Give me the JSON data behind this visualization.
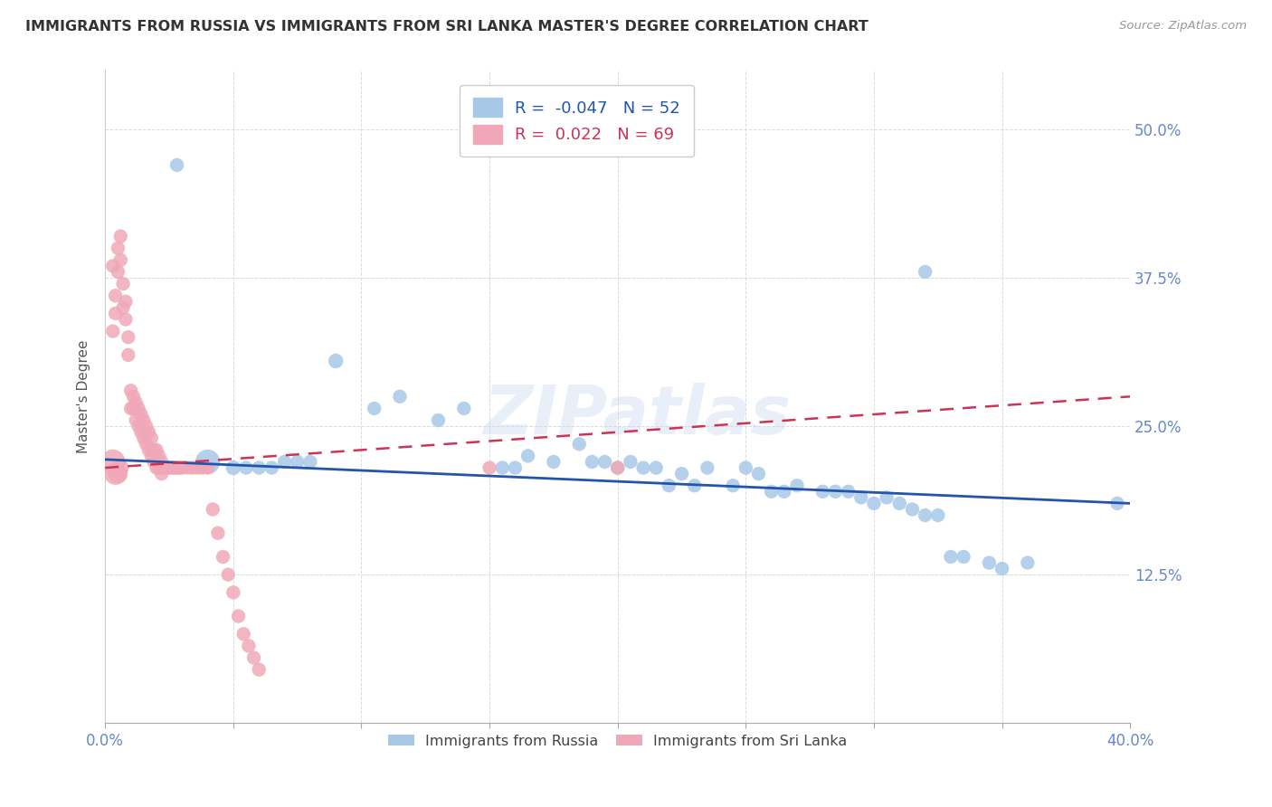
{
  "title": "IMMIGRANTS FROM RUSSIA VS IMMIGRANTS FROM SRI LANKA MASTER'S DEGREE CORRELATION CHART",
  "source": "Source: ZipAtlas.com",
  "ylabel": "Master's Degree",
  "watermark": "ZIPatlas",
  "x_min": 0.0,
  "x_max": 0.4,
  "y_min": 0.0,
  "y_max": 0.55,
  "x_ticks": [
    0.0,
    0.05,
    0.1,
    0.15,
    0.2,
    0.25,
    0.3,
    0.35,
    0.4
  ],
  "y_ticks": [
    0.0,
    0.125,
    0.25,
    0.375,
    0.5
  ],
  "y_tick_labels_right": [
    "",
    "12.5%",
    "25.0%",
    "37.5%",
    "50.0%"
  ],
  "blue_R": -0.047,
  "blue_N": 52,
  "pink_R": 0.022,
  "pink_N": 69,
  "blue_color": "#a8c8e8",
  "pink_color": "#f0a8b8",
  "blue_line_color": "#2255aa",
  "pink_line_color": "#cc3355",
  "grid_color": "#cccccc",
  "background_color": "#ffffff",
  "title_color": "#333333",
  "tick_label_color": "#6688cc",
  "blue_line_start_y": 0.222,
  "blue_line_end_y": 0.185,
  "pink_line_start_y": 0.215,
  "pink_line_end_y": 0.275,
  "blue_x": [
    0.028,
    0.09,
    0.105,
    0.115,
    0.13,
    0.14,
    0.155,
    0.16,
    0.165,
    0.175,
    0.185,
    0.19,
    0.195,
    0.2,
    0.205,
    0.21,
    0.215,
    0.22,
    0.225,
    0.23,
    0.235,
    0.245,
    0.25,
    0.255,
    0.26,
    0.265,
    0.27,
    0.28,
    0.285,
    0.29,
    0.295,
    0.3,
    0.305,
    0.31,
    0.315,
    0.32,
    0.325,
    0.33,
    0.335,
    0.345,
    0.35,
    0.36,
    0.04,
    0.05,
    0.055,
    0.06,
    0.065,
    0.07,
    0.075,
    0.08,
    0.32,
    0.395
  ],
  "blue_y": [
    0.47,
    0.305,
    0.265,
    0.275,
    0.255,
    0.265,
    0.215,
    0.215,
    0.225,
    0.22,
    0.235,
    0.22,
    0.22,
    0.215,
    0.22,
    0.215,
    0.215,
    0.2,
    0.21,
    0.2,
    0.215,
    0.2,
    0.215,
    0.21,
    0.195,
    0.195,
    0.2,
    0.195,
    0.195,
    0.195,
    0.19,
    0.185,
    0.19,
    0.185,
    0.18,
    0.175,
    0.175,
    0.14,
    0.14,
    0.135,
    0.13,
    0.135,
    0.22,
    0.215,
    0.215,
    0.215,
    0.215,
    0.22,
    0.22,
    0.22,
    0.38,
    0.185
  ],
  "blue_sizes": [
    35,
    40,
    35,
    35,
    35,
    35,
    35,
    35,
    35,
    35,
    35,
    35,
    35,
    35,
    35,
    35,
    35,
    35,
    35,
    35,
    35,
    35,
    35,
    35,
    35,
    35,
    35,
    35,
    35,
    35,
    35,
    35,
    35,
    35,
    35,
    35,
    35,
    35,
    35,
    35,
    35,
    35,
    110,
    40,
    35,
    35,
    35,
    35,
    35,
    35,
    35,
    35
  ],
  "pink_x": [
    0.003,
    0.004,
    0.005,
    0.006,
    0.007,
    0.008,
    0.009,
    0.01,
    0.011,
    0.012,
    0.013,
    0.014,
    0.015,
    0.016,
    0.017,
    0.018,
    0.019,
    0.02,
    0.021,
    0.022,
    0.003,
    0.004,
    0.005,
    0.006,
    0.007,
    0.008,
    0.009,
    0.01,
    0.011,
    0.012,
    0.013,
    0.014,
    0.015,
    0.016,
    0.017,
    0.018,
    0.019,
    0.02,
    0.021,
    0.022,
    0.023,
    0.024,
    0.025,
    0.026,
    0.027,
    0.028,
    0.029,
    0.03,
    0.032,
    0.034,
    0.036,
    0.038,
    0.04,
    0.042,
    0.044,
    0.046,
    0.048,
    0.05,
    0.003,
    0.004,
    0.005,
    0.006,
    0.052,
    0.054,
    0.056,
    0.058,
    0.06,
    0.15,
    0.2
  ],
  "pink_y": [
    0.385,
    0.36,
    0.4,
    0.41,
    0.37,
    0.355,
    0.325,
    0.28,
    0.275,
    0.27,
    0.265,
    0.26,
    0.255,
    0.25,
    0.245,
    0.24,
    0.23,
    0.23,
    0.225,
    0.22,
    0.33,
    0.345,
    0.38,
    0.39,
    0.35,
    0.34,
    0.31,
    0.265,
    0.265,
    0.255,
    0.25,
    0.245,
    0.24,
    0.235,
    0.23,
    0.225,
    0.22,
    0.215,
    0.215,
    0.21,
    0.215,
    0.215,
    0.215,
    0.215,
    0.215,
    0.215,
    0.215,
    0.215,
    0.215,
    0.215,
    0.215,
    0.215,
    0.215,
    0.18,
    0.16,
    0.14,
    0.125,
    0.11,
    0.22,
    0.21,
    0.21,
    0.215,
    0.09,
    0.075,
    0.065,
    0.055,
    0.045,
    0.215,
    0.215
  ],
  "pink_sizes": [
    35,
    35,
    35,
    35,
    35,
    35,
    35,
    35,
    35,
    35,
    35,
    35,
    35,
    35,
    35,
    35,
    35,
    35,
    35,
    35,
    35,
    35,
    35,
    35,
    35,
    35,
    35,
    35,
    35,
    35,
    35,
    35,
    35,
    35,
    35,
    35,
    35,
    35,
    35,
    35,
    35,
    35,
    35,
    35,
    35,
    35,
    35,
    35,
    35,
    35,
    35,
    35,
    35,
    35,
    35,
    35,
    35,
    35,
    110,
    90,
    70,
    50,
    35,
    35,
    35,
    35,
    35,
    35,
    35
  ]
}
